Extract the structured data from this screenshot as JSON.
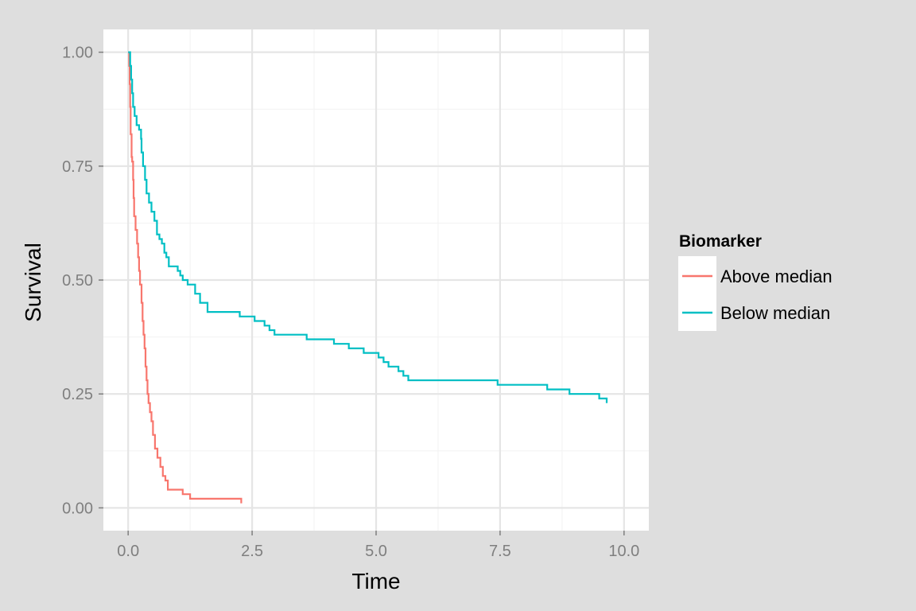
{
  "chart_data": {
    "type": "line",
    "step": true,
    "xlabel": "Time",
    "ylabel": "Survival",
    "xlim": [
      -0.5,
      10.5
    ],
    "ylim": [
      -0.05,
      1.05
    ],
    "x_ticks": [
      0,
      2.5,
      5,
      7.5,
      10
    ],
    "x_tick_labels": [
      "0.0",
      "2.5",
      "5.0",
      "7.5",
      "10.0"
    ],
    "y_ticks": [
      0,
      0.25,
      0.5,
      0.75,
      1
    ],
    "y_tick_labels": [
      "0.00",
      "0.25",
      "0.50",
      "0.75",
      "1.00"
    ],
    "grid": true,
    "legend": {
      "title": "Biomarker",
      "position": "right"
    },
    "series": [
      {
        "name": "Above median",
        "color": "#F8766D",
        "points": [
          [
            0,
            1.0
          ],
          [
            0.02,
            0.97
          ],
          [
            0.03,
            0.93
          ],
          [
            0.04,
            0.88
          ],
          [
            0.05,
            0.82
          ],
          [
            0.07,
            0.77
          ],
          [
            0.08,
            0.76
          ],
          [
            0.1,
            0.72
          ],
          [
            0.11,
            0.68
          ],
          [
            0.12,
            0.64
          ],
          [
            0.15,
            0.61
          ],
          [
            0.18,
            0.58
          ],
          [
            0.2,
            0.55
          ],
          [
            0.22,
            0.52
          ],
          [
            0.24,
            0.49
          ],
          [
            0.27,
            0.45
          ],
          [
            0.29,
            0.41
          ],
          [
            0.31,
            0.38
          ],
          [
            0.33,
            0.35
          ],
          [
            0.35,
            0.31
          ],
          [
            0.37,
            0.28
          ],
          [
            0.39,
            0.25
          ],
          [
            0.41,
            0.23
          ],
          [
            0.44,
            0.21
          ],
          [
            0.47,
            0.19
          ],
          [
            0.5,
            0.16
          ],
          [
            0.54,
            0.13
          ],
          [
            0.59,
            0.11
          ],
          [
            0.65,
            0.09
          ],
          [
            0.7,
            0.07
          ],
          [
            0.75,
            0.06
          ],
          [
            0.8,
            0.04
          ],
          [
            1.1,
            0.03
          ],
          [
            1.25,
            0.02
          ],
          [
            2.28,
            0.01
          ]
        ],
        "end_x": 2.28
      },
      {
        "name": "Below median",
        "color": "#00BFC4",
        "points": [
          [
            0,
            1.0
          ],
          [
            0.04,
            0.97
          ],
          [
            0.06,
            0.94
          ],
          [
            0.08,
            0.91
          ],
          [
            0.1,
            0.88
          ],
          [
            0.13,
            0.86
          ],
          [
            0.17,
            0.84
          ],
          [
            0.22,
            0.83
          ],
          [
            0.26,
            0.81
          ],
          [
            0.27,
            0.78
          ],
          [
            0.3,
            0.75
          ],
          [
            0.34,
            0.72
          ],
          [
            0.37,
            0.69
          ],
          [
            0.42,
            0.67
          ],
          [
            0.47,
            0.65
          ],
          [
            0.53,
            0.63
          ],
          [
            0.58,
            0.6
          ],
          [
            0.63,
            0.59
          ],
          [
            0.68,
            0.58
          ],
          [
            0.73,
            0.56
          ],
          [
            0.77,
            0.55
          ],
          [
            0.82,
            0.53
          ],
          [
            1.0,
            0.52
          ],
          [
            1.05,
            0.51
          ],
          [
            1.1,
            0.5
          ],
          [
            1.2,
            0.49
          ],
          [
            1.35,
            0.47
          ],
          [
            1.45,
            0.45
          ],
          [
            1.6,
            0.43
          ],
          [
            2.25,
            0.42
          ],
          [
            2.55,
            0.41
          ],
          [
            2.75,
            0.4
          ],
          [
            2.85,
            0.39
          ],
          [
            2.95,
            0.38
          ],
          [
            3.6,
            0.37
          ],
          [
            4.15,
            0.36
          ],
          [
            4.45,
            0.35
          ],
          [
            4.75,
            0.34
          ],
          [
            5.05,
            0.33
          ],
          [
            5.15,
            0.32
          ],
          [
            5.25,
            0.31
          ],
          [
            5.45,
            0.3
          ],
          [
            5.55,
            0.29
          ],
          [
            5.65,
            0.28
          ],
          [
            7.45,
            0.27
          ],
          [
            8.45,
            0.26
          ],
          [
            8.9,
            0.25
          ],
          [
            9.5,
            0.24
          ],
          [
            9.65,
            0.23
          ]
        ],
        "end_x": 9.65
      }
    ]
  }
}
